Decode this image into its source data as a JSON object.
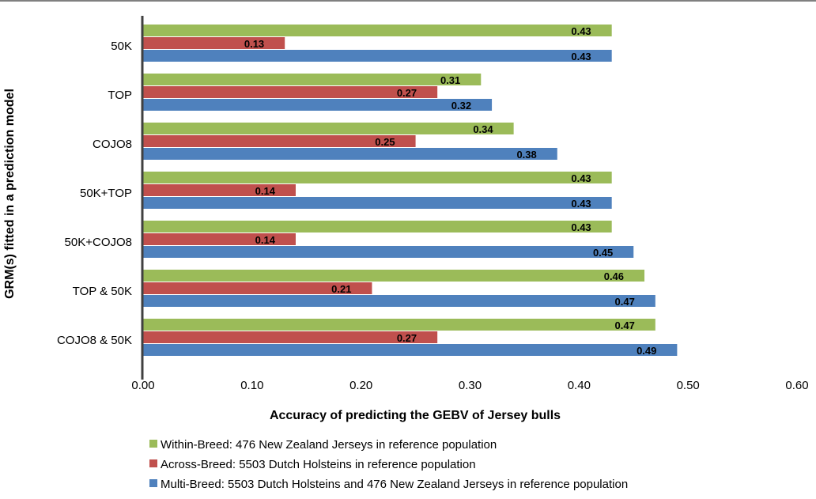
{
  "chart_data": {
    "type": "bar",
    "orientation": "horizontal",
    "categories": [
      "50K",
      "TOP",
      "COJO8",
      "50K+TOP",
      "50K+COJO8",
      "TOP & 50K",
      "COJO8 & 50K"
    ],
    "series": [
      {
        "name": "Within-Breed: 476 New Zealand Jerseys in reference population",
        "color": "#9bbb59",
        "values": [
          0.43,
          0.31,
          0.34,
          0.43,
          0.43,
          0.46,
          0.47
        ],
        "labels": [
          "0.43",
          "0.31",
          "0.34",
          "0.43",
          "0.43",
          "0.46",
          "0.47"
        ]
      },
      {
        "name": "Across-Breed: 5503 Dutch Holsteins in reference population",
        "color": "#c0504d",
        "values": [
          0.13,
          0.27,
          0.25,
          0.14,
          0.14,
          0.21,
          0.27
        ],
        "labels": [
          "0.13",
          "0.27",
          "0.25",
          "0.14",
          "0.14",
          "0.21",
          "0.27"
        ]
      },
      {
        "name": "Multi-Breed: 5503 Dutch Holsteins and 476 New Zealand Jerseys in reference population",
        "color": "#4f81bd",
        "values": [
          0.43,
          0.32,
          0.38,
          0.43,
          0.45,
          0.47,
          0.49
        ],
        "labels": [
          "0.43",
          "0.32",
          "0.38",
          "0.43",
          "0.45",
          "0.47",
          "0.49"
        ]
      }
    ],
    "xlabel": "Accuracy of predicting the GEBV of Jersey bulls",
    "ylabel": "GRM(s) fitted in a prediction model",
    "xlim": [
      0,
      0.6
    ],
    "xticks": [
      "0.00",
      "0.10",
      "0.20",
      "0.30",
      "0.40",
      "0.50",
      "0.60"
    ],
    "grid": false,
    "legend_position": "bottom"
  }
}
